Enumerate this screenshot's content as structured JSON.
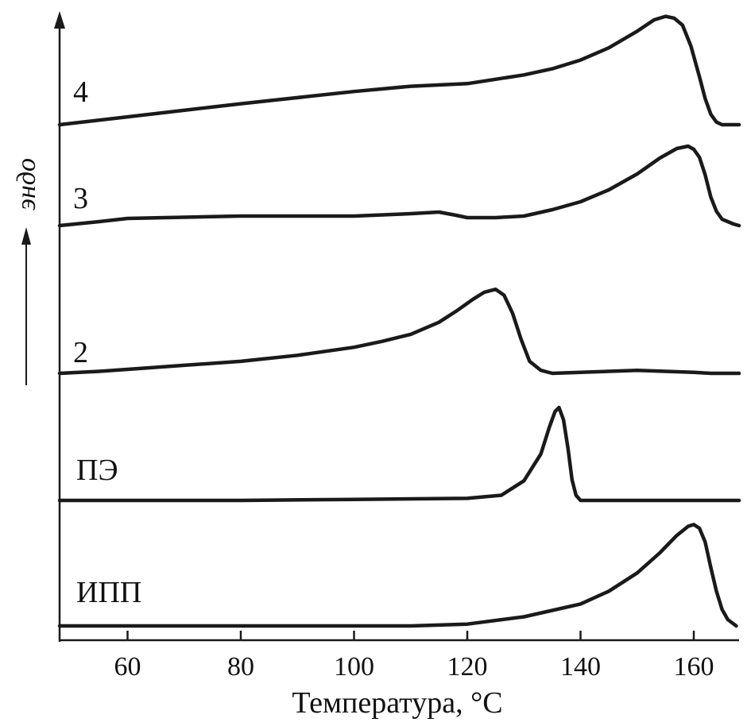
{
  "chart_data": {
    "type": "line",
    "title": "",
    "xlabel": "Температура, °С",
    "ylabel": "эндо",
    "xlim": [
      48,
      168
    ],
    "x_ticks": [
      60,
      80,
      100,
      120,
      140,
      160
    ],
    "y_ticks": [],
    "grid": false,
    "legend": "none",
    "series": [
      {
        "name": "4",
        "points": [
          [
            48,
            0
          ],
          [
            60,
            0.09
          ],
          [
            80,
            0.24
          ],
          [
            100,
            0.38
          ],
          [
            110,
            0.44
          ],
          [
            120,
            0.47
          ],
          [
            125,
            0.52
          ],
          [
            130,
            0.57
          ],
          [
            135,
            0.64
          ],
          [
            140,
            0.74
          ],
          [
            145,
            0.88
          ],
          [
            150,
            1.07
          ],
          [
            153,
            1.2
          ],
          [
            155,
            1.24
          ],
          [
            156.5,
            1.22
          ],
          [
            158,
            1.14
          ],
          [
            159.5,
            0.9
          ],
          [
            161,
            0.55
          ],
          [
            162,
            0.3
          ],
          [
            163,
            0.12
          ],
          [
            164,
            0.03
          ],
          [
            165,
            0
          ],
          [
            168,
            0
          ]
        ]
      },
      {
        "name": "3",
        "points": [
          [
            48,
            0
          ],
          [
            55,
            0.05
          ],
          [
            60,
            0.09
          ],
          [
            80,
            0.12
          ],
          [
            100,
            0.12
          ],
          [
            110,
            0.15
          ],
          [
            115,
            0.17
          ],
          [
            118,
            0.13
          ],
          [
            120,
            0.1
          ],
          [
            125,
            0.1
          ],
          [
            130,
            0.12
          ],
          [
            135,
            0.2
          ],
          [
            140,
            0.3
          ],
          [
            145,
            0.45
          ],
          [
            150,
            0.65
          ],
          [
            154,
            0.85
          ],
          [
            157,
            0.97
          ],
          [
            159,
            1.0
          ],
          [
            160,
            0.96
          ],
          [
            161,
            0.86
          ],
          [
            162,
            0.64
          ],
          [
            163,
            0.36
          ],
          [
            164,
            0.18
          ],
          [
            165,
            0.08
          ],
          [
            167,
            0.02
          ],
          [
            168,
            0
          ]
        ]
      },
      {
        "name": "2",
        "points": [
          [
            48,
            0
          ],
          [
            55,
            0.02
          ],
          [
            60,
            0.04
          ],
          [
            70,
            0.08
          ],
          [
            80,
            0.12
          ],
          [
            90,
            0.18
          ],
          [
            100,
            0.26
          ],
          [
            105,
            0.32
          ],
          [
            110,
            0.39
          ],
          [
            115,
            0.51
          ],
          [
            118,
            0.62
          ],
          [
            121,
            0.74
          ],
          [
            123,
            0.81
          ],
          [
            125,
            0.84
          ],
          [
            126.5,
            0.78
          ],
          [
            128,
            0.6
          ],
          [
            129.5,
            0.34
          ],
          [
            131,
            0.12
          ],
          [
            133,
            0.03
          ],
          [
            135,
            0
          ],
          [
            140,
            0.01
          ],
          [
            145,
            0.02
          ],
          [
            150,
            0.03
          ],
          [
            155,
            0.02
          ],
          [
            160,
            0.01
          ],
          [
            163,
            0
          ],
          [
            168,
            0
          ]
        ]
      },
      {
        "name": "ПЭ",
        "points": [
          [
            48,
            0
          ],
          [
            80,
            0
          ],
          [
            100,
            0.01
          ],
          [
            120,
            0.02
          ],
          [
            126,
            0.05
          ],
          [
            130,
            0.19
          ],
          [
            133,
            0.45
          ],
          [
            134.5,
            0.71
          ],
          [
            135.5,
            0.86
          ],
          [
            136.2,
            0.9
          ],
          [
            137,
            0.78
          ],
          [
            137.8,
            0.5
          ],
          [
            138.5,
            0.2
          ],
          [
            139.2,
            0.05
          ],
          [
            140,
            0
          ],
          [
            168,
            0
          ]
        ]
      },
      {
        "name": "ИПП",
        "points": [
          [
            48,
            0
          ],
          [
            60,
            0
          ],
          [
            80,
            0
          ],
          [
            100,
            0
          ],
          [
            110,
            0
          ],
          [
            120,
            0.02
          ],
          [
            130,
            0.1
          ],
          [
            140,
            0.24
          ],
          [
            145,
            0.38
          ],
          [
            150,
            0.58
          ],
          [
            154,
            0.8
          ],
          [
            157,
            0.99
          ],
          [
            159,
            1.09
          ],
          [
            160,
            1.11
          ],
          [
            161,
            1.07
          ],
          [
            162,
            0.92
          ],
          [
            163,
            0.64
          ],
          [
            164,
            0.38
          ],
          [
            165,
            0.18
          ],
          [
            166,
            0.07
          ],
          [
            167.5,
            0
          ]
        ]
      }
    ]
  }
}
